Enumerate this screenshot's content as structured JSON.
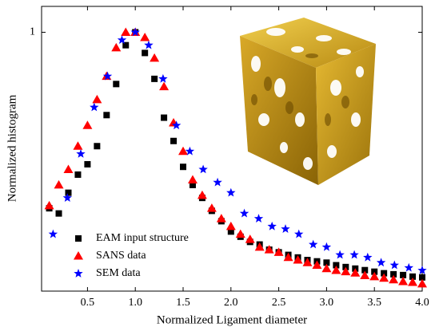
{
  "chart_data": {
    "type": "scatter",
    "x_label": "Normalized Ligament diameter",
    "y_label": "Normalized histogram",
    "xlim": [
      0.02,
      4.0
    ],
    "ylim": [
      0,
      1.1
    ],
    "xticks": [
      0.5,
      {
        "value": 1,
        "label": "1.0"
      },
      1.5,
      {
        "value": 2,
        "label": "2.0"
      },
      2.5,
      {
        "value": 3,
        "label": "3.0"
      },
      3.5,
      {
        "value": 4,
        "label": "4.0"
      }
    ],
    "yticks": [
      1
    ],
    "legend": "lower left",
    "series": [
      {
        "name": "EAM input structure",
        "color": "#000000",
        "marker": "square",
        "x": [
          0.1,
          0.2,
          0.3,
          0.4,
          0.5,
          0.6,
          0.7,
          0.8,
          0.9,
          1.0,
          1.1,
          1.2,
          1.3,
          1.4,
          1.5,
          1.6,
          1.7,
          1.8,
          1.9,
          2.0,
          2.1,
          2.2,
          2.3,
          2.4,
          2.5,
          2.6,
          2.7,
          2.8,
          2.9,
          3.0,
          3.1,
          3.2,
          3.3,
          3.4,
          3.5,
          3.6,
          3.7,
          3.8,
          3.9,
          4.0
        ],
        "values": [
          0.32,
          0.3,
          0.38,
          0.45,
          0.49,
          0.56,
          0.68,
          0.8,
          0.95,
          1.0,
          0.92,
          0.82,
          0.67,
          0.58,
          0.48,
          0.41,
          0.36,
          0.31,
          0.27,
          0.23,
          0.21,
          0.19,
          0.18,
          0.16,
          0.15,
          0.14,
          0.13,
          0.12,
          0.115,
          0.11,
          0.1,
          0.093,
          0.087,
          0.081,
          0.075,
          0.069,
          0.065,
          0.062,
          0.056,
          0.053
        ]
      },
      {
        "name": "SANS data",
        "color": "#ff0000",
        "marker": "triangle",
        "x": [
          0.1,
          0.2,
          0.3,
          0.4,
          0.5,
          0.6,
          0.7,
          0.8,
          0.9,
          1.0,
          1.1,
          1.2,
          1.3,
          1.4,
          1.5,
          1.6,
          1.7,
          1.8,
          1.9,
          2.0,
          2.1,
          2.2,
          2.3,
          2.4,
          2.5,
          2.6,
          2.7,
          2.8,
          2.9,
          3.0,
          3.1,
          3.2,
          3.3,
          3.4,
          3.5,
          3.6,
          3.7,
          3.8,
          3.9,
          4.0
        ],
        "values": [
          0.33,
          0.41,
          0.47,
          0.56,
          0.64,
          0.74,
          0.83,
          0.94,
          1.0,
          1.0,
          0.98,
          0.9,
          0.79,
          0.65,
          0.54,
          0.43,
          0.37,
          0.32,
          0.28,
          0.25,
          0.22,
          0.2,
          0.17,
          0.16,
          0.15,
          0.13,
          0.12,
          0.11,
          0.1,
          0.087,
          0.08,
          0.075,
          0.07,
          0.06,
          0.056,
          0.05,
          0.044,
          0.037,
          0.034,
          0.028
        ]
      },
      {
        "name": "SEM data",
        "color": "#0000ff",
        "marker": "star",
        "x": [
          0.14,
          0.29,
          0.43,
          0.57,
          0.71,
          0.86,
          1.0,
          1.14,
          1.29,
          1.43,
          1.57,
          1.71,
          1.86,
          2.0,
          2.14,
          2.29,
          2.43,
          2.57,
          2.71,
          2.86,
          3.0,
          3.14,
          3.29,
          3.43,
          3.57,
          3.71,
          3.86,
          4.0
        ],
        "values": [
          0.22,
          0.36,
          0.53,
          0.71,
          0.83,
          0.97,
          1.0,
          0.95,
          0.82,
          0.64,
          0.54,
          0.47,
          0.42,
          0.38,
          0.3,
          0.28,
          0.25,
          0.24,
          0.22,
          0.18,
          0.17,
          0.14,
          0.14,
          0.13,
          0.11,
          0.1,
          0.09,
          0.08
        ]
      }
    ]
  }
}
